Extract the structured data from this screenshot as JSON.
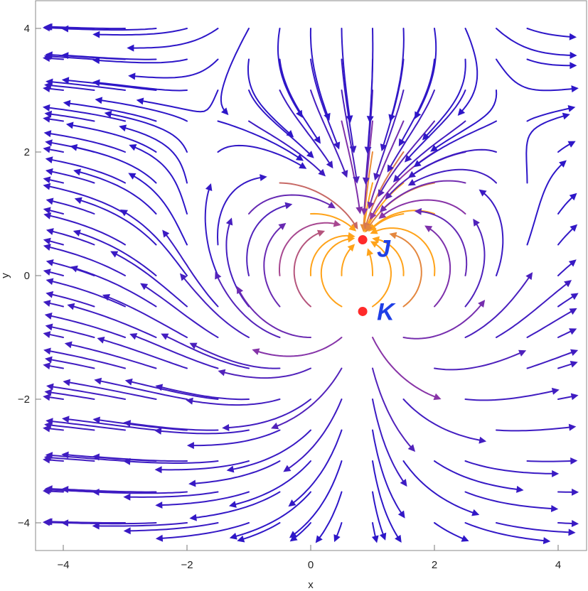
{
  "chart_data": {
    "type": "streamplot",
    "xlabel": "x",
    "ylabel": "y",
    "xlim": [
      -4.4,
      4.4
    ],
    "ylim": [
      -4.4,
      4.4
    ],
    "xticks": [
      {
        "value": -4,
        "label": "−4"
      },
      {
        "value": -2,
        "label": "−2"
      },
      {
        "value": 0,
        "label": "0"
      },
      {
        "value": 2,
        "label": "2"
      },
      {
        "value": 4,
        "label": "4"
      }
    ],
    "yticks": [
      {
        "value": -4,
        "label": "−4"
      },
      {
        "value": -2,
        "label": "−2"
      },
      {
        "value": 0,
        "label": "0"
      },
      {
        "value": 2,
        "label": "2"
      },
      {
        "value": 4,
        "label": "4"
      }
    ],
    "grid": false,
    "colormap": "sunset: dark blue (low speed) → purple → orange (high speed)",
    "colors": {
      "low": "#2d16c8",
      "mid": "#9b3aa0",
      "high": "#ffa31a",
      "points": "#ff2a2a",
      "labels": "#1f3fe6"
    },
    "field": "dipole-like flow between two charges",
    "points": [
      {
        "name": "J",
        "x": 0.84,
        "y": 0.58
      },
      {
        "name": "K",
        "x": 0.84,
        "y": -0.58
      }
    ]
  }
}
